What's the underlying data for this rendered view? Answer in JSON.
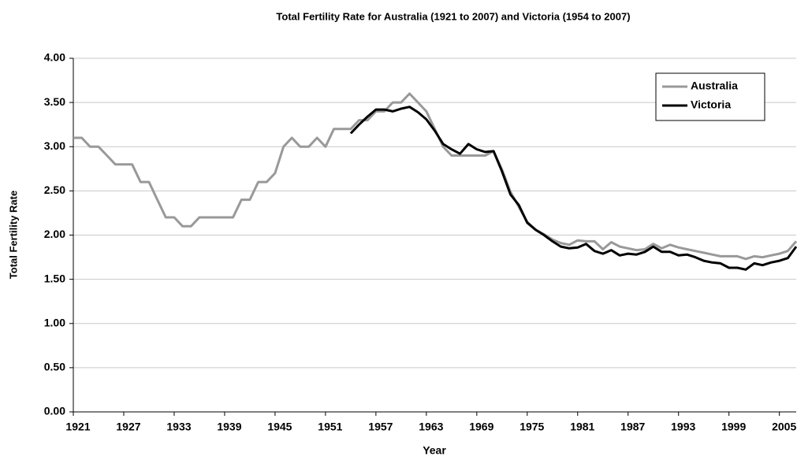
{
  "chart_data": {
    "type": "line",
    "title": "Total Fertility Rate for Australia (1921 to 2007) and Victoria (1954 to 2007)",
    "x_label": "Year",
    "y_label": "Total Fertility Rate",
    "x": [
      1921,
      1922,
      1923,
      1924,
      1925,
      1926,
      1927,
      1928,
      1929,
      1930,
      1931,
      1932,
      1933,
      1934,
      1935,
      1936,
      1937,
      1938,
      1939,
      1940,
      1941,
      1942,
      1943,
      1944,
      1945,
      1946,
      1947,
      1948,
      1949,
      1950,
      1951,
      1952,
      1953,
      1954,
      1955,
      1956,
      1957,
      1958,
      1959,
      1960,
      1961,
      1962,
      1963,
      1964,
      1965,
      1966,
      1967,
      1968,
      1969,
      1970,
      1971,
      1972,
      1973,
      1974,
      1975,
      1976,
      1977,
      1978,
      1979,
      1980,
      1981,
      1982,
      1983,
      1984,
      1985,
      1986,
      1987,
      1988,
      1989,
      1990,
      1991,
      1992,
      1993,
      1994,
      1995,
      1996,
      1997,
      1998,
      1999,
      2000,
      2001,
      2002,
      2003,
      2004,
      2005,
      2006,
      2007
    ],
    "series": [
      {
        "name": "Australia",
        "color": "#999999",
        "values": [
          3.1,
          3.1,
          3.0,
          3.0,
          2.9,
          2.8,
          2.8,
          2.8,
          2.6,
          2.6,
          2.4,
          2.2,
          2.2,
          2.1,
          2.1,
          2.2,
          2.2,
          2.2,
          2.2,
          2.2,
          2.4,
          2.4,
          2.6,
          2.6,
          2.7,
          3.0,
          3.1,
          3.0,
          3.0,
          3.1,
          3.0,
          3.2,
          3.2,
          3.2,
          3.3,
          3.3,
          3.4,
          3.4,
          3.5,
          3.5,
          3.6,
          3.5,
          3.4,
          3.2,
          3.0,
          2.9,
          2.9,
          2.9,
          2.9,
          2.9,
          2.95,
          2.74,
          2.49,
          2.32,
          2.15,
          2.06,
          2.01,
          1.95,
          1.91,
          1.89,
          1.94,
          1.93,
          1.93,
          1.84,
          1.92,
          1.87,
          1.85,
          1.83,
          1.84,
          1.9,
          1.85,
          1.89,
          1.86,
          1.84,
          1.82,
          1.8,
          1.78,
          1.76,
          1.76,
          1.76,
          1.73,
          1.76,
          1.75,
          1.77,
          1.79,
          1.82,
          1.93
        ]
      },
      {
        "name": "Victoria",
        "color": "#000000",
        "values": [
          null,
          null,
          null,
          null,
          null,
          null,
          null,
          null,
          null,
          null,
          null,
          null,
          null,
          null,
          null,
          null,
          null,
          null,
          null,
          null,
          null,
          null,
          null,
          null,
          null,
          null,
          null,
          null,
          null,
          null,
          null,
          null,
          null,
          3.15,
          3.25,
          3.34,
          3.42,
          3.42,
          3.4,
          3.43,
          3.45,
          3.39,
          3.31,
          3.18,
          3.03,
          2.97,
          2.92,
          3.03,
          2.97,
          2.94,
          2.95,
          2.72,
          2.46,
          2.34,
          2.14,
          2.06,
          2.0,
          1.93,
          1.87,
          1.85,
          1.86,
          1.9,
          1.82,
          1.79,
          1.83,
          1.77,
          1.79,
          1.78,
          1.81,
          1.87,
          1.81,
          1.81,
          1.77,
          1.78,
          1.75,
          1.71,
          1.69,
          1.68,
          1.63,
          1.63,
          1.61,
          1.68,
          1.66,
          1.69,
          1.71,
          1.74,
          1.87
        ]
      }
    ],
    "xlim": [
      1921,
      2007
    ],
    "xticks": [
      1921,
      1927,
      1933,
      1939,
      1945,
      1951,
      1957,
      1963,
      1969,
      1975,
      1981,
      1987,
      1993,
      1999,
      2005
    ],
    "ylim": [
      0,
      4
    ],
    "yticks": [
      {
        "value": 0,
        "label": "0.00"
      },
      {
        "value": 0.5,
        "label": "0.50"
      },
      {
        "value": 1,
        "label": "1.00"
      },
      {
        "value": 1.5,
        "label": "1.50"
      },
      {
        "value": 2,
        "label": "2.00"
      },
      {
        "value": 2.5,
        "label": "2.50"
      },
      {
        "value": 3,
        "label": "3.00"
      },
      {
        "value": 3.5,
        "label": "3.50"
      },
      {
        "value": 4,
        "label": "4.00"
      }
    ],
    "grid": true,
    "legend": "upper right"
  }
}
